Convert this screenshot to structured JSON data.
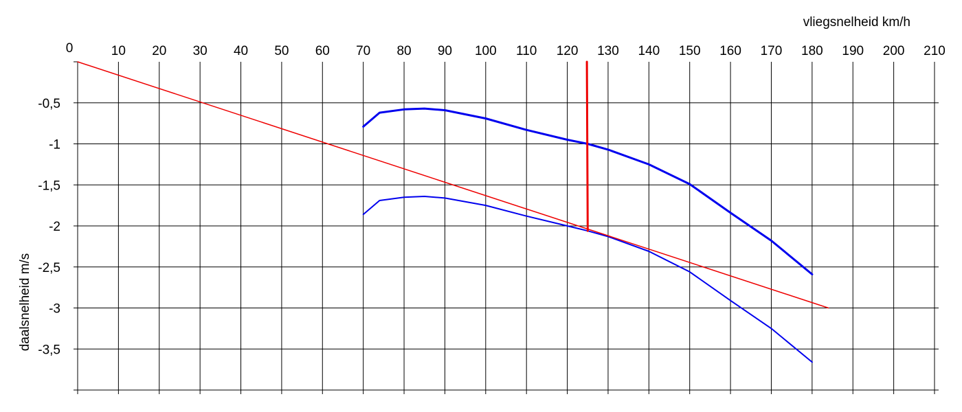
{
  "chart_data": {
    "type": "line",
    "xlabel": "vliegsnelheid km/h",
    "ylabel": "daalsnelheid m/s",
    "xlim": [
      0,
      210
    ],
    "ylim": [
      -4.0,
      0
    ],
    "x_tick_labels": [
      "0",
      "10",
      "20",
      "30",
      "40",
      "50",
      "60",
      "70",
      "80",
      "90",
      "100",
      "110",
      "120",
      "130",
      "140",
      "150",
      "160",
      "170",
      "180",
      "190",
      "200",
      "210"
    ],
    "x_ticks": [
      0,
      10,
      20,
      30,
      40,
      50,
      60,
      70,
      80,
      90,
      100,
      110,
      120,
      130,
      140,
      150,
      160,
      170,
      180,
      190,
      200,
      210
    ],
    "y_tick_labels": [
      "-0,5",
      "-1",
      "-1,5",
      "-2",
      "-2,5",
      "-3",
      "-3,5"
    ],
    "y_ticks": [
      -0.5,
      -1.0,
      -1.5,
      -2.0,
      -2.5,
      -3.0,
      -3.5
    ],
    "grid": true,
    "series": [
      {
        "color": "#0000ee",
        "stroke_width": 3,
        "x": [
          70,
          74,
          80,
          85,
          90,
          100,
          110,
          120,
          125,
          130,
          140,
          150,
          160,
          170,
          180
        ],
        "y": [
          -0.79,
          -0.62,
          -0.58,
          -0.57,
          -0.59,
          -0.69,
          -0.83,
          -0.95,
          -1.0,
          -1.07,
          -1.25,
          -1.49,
          -1.84,
          -2.18,
          -2.59
        ]
      },
      {
        "color": "#0000ee",
        "stroke_width": 2,
        "x": [
          70,
          74,
          80,
          85,
          90,
          100,
          110,
          120,
          125,
          130,
          140,
          150,
          160,
          170,
          180
        ],
        "y": [
          -1.86,
          -1.69,
          -1.65,
          -1.64,
          -1.66,
          -1.75,
          -1.88,
          -2.0,
          -2.06,
          -2.13,
          -2.31,
          -2.56,
          -2.91,
          -3.25,
          -3.66
        ]
      },
      {
        "color": "#ee0000",
        "stroke_width": 1.5,
        "x": [
          0,
          184
        ],
        "y": [
          0,
          -3.0
        ]
      },
      {
        "color": "#ee0000",
        "stroke_width": 3,
        "x": [
          124.8,
          125.0
        ],
        "y": [
          0,
          -2.06
        ]
      }
    ]
  }
}
